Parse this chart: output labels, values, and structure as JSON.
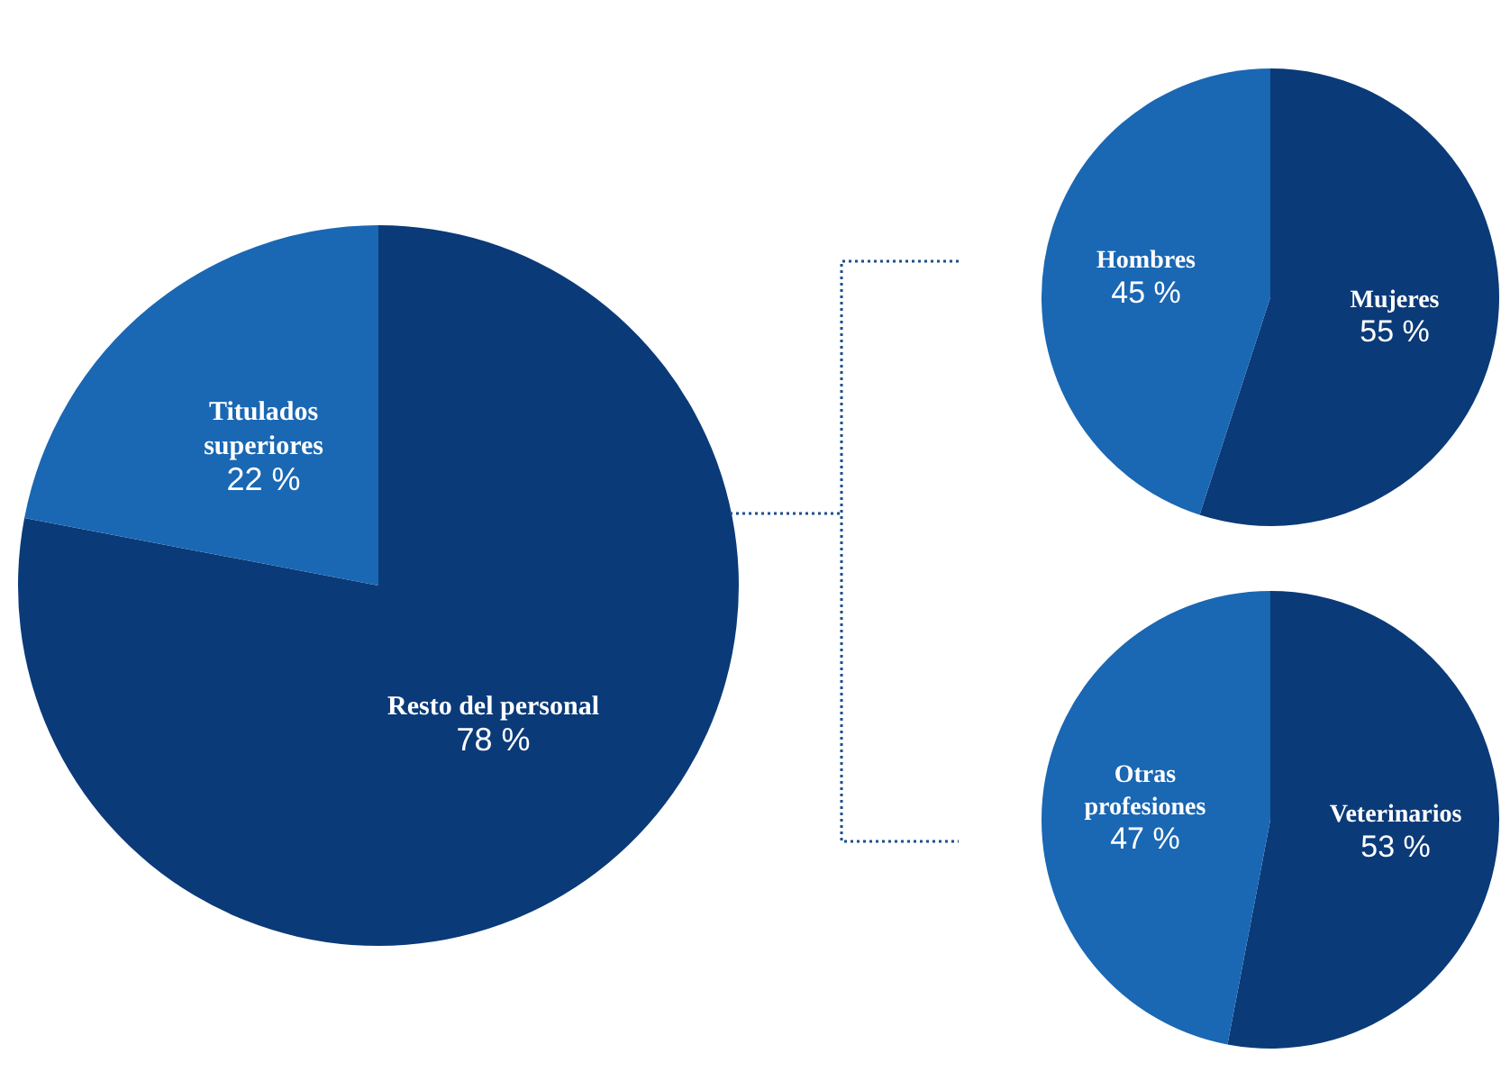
{
  "chart_data": [
    {
      "type": "pie",
      "categories": [
        "Resto del personal",
        "Titulados\nsuperiores"
      ],
      "values": [
        78,
        22
      ],
      "value_labels": [
        "78 %",
        "22 %"
      ],
      "colors": [
        "#0b3a78",
        "#1a67b3"
      ],
      "legend": false
    },
    {
      "type": "pie",
      "categories": [
        "Mujeres",
        "Hombres"
      ],
      "values": [
        55,
        45
      ],
      "value_labels": [
        "55 %",
        "45 %"
      ],
      "colors": [
        "#0b3a78",
        "#1a67b3"
      ],
      "legend": false
    },
    {
      "type": "pie",
      "categories": [
        "Veterinarios",
        "Otras\nprofesiones"
      ],
      "values": [
        53,
        47
      ],
      "value_labels": [
        "53 %",
        "47 %"
      ],
      "colors": [
        "#0b3a78",
        "#1a67b3"
      ],
      "legend": false
    }
  ]
}
